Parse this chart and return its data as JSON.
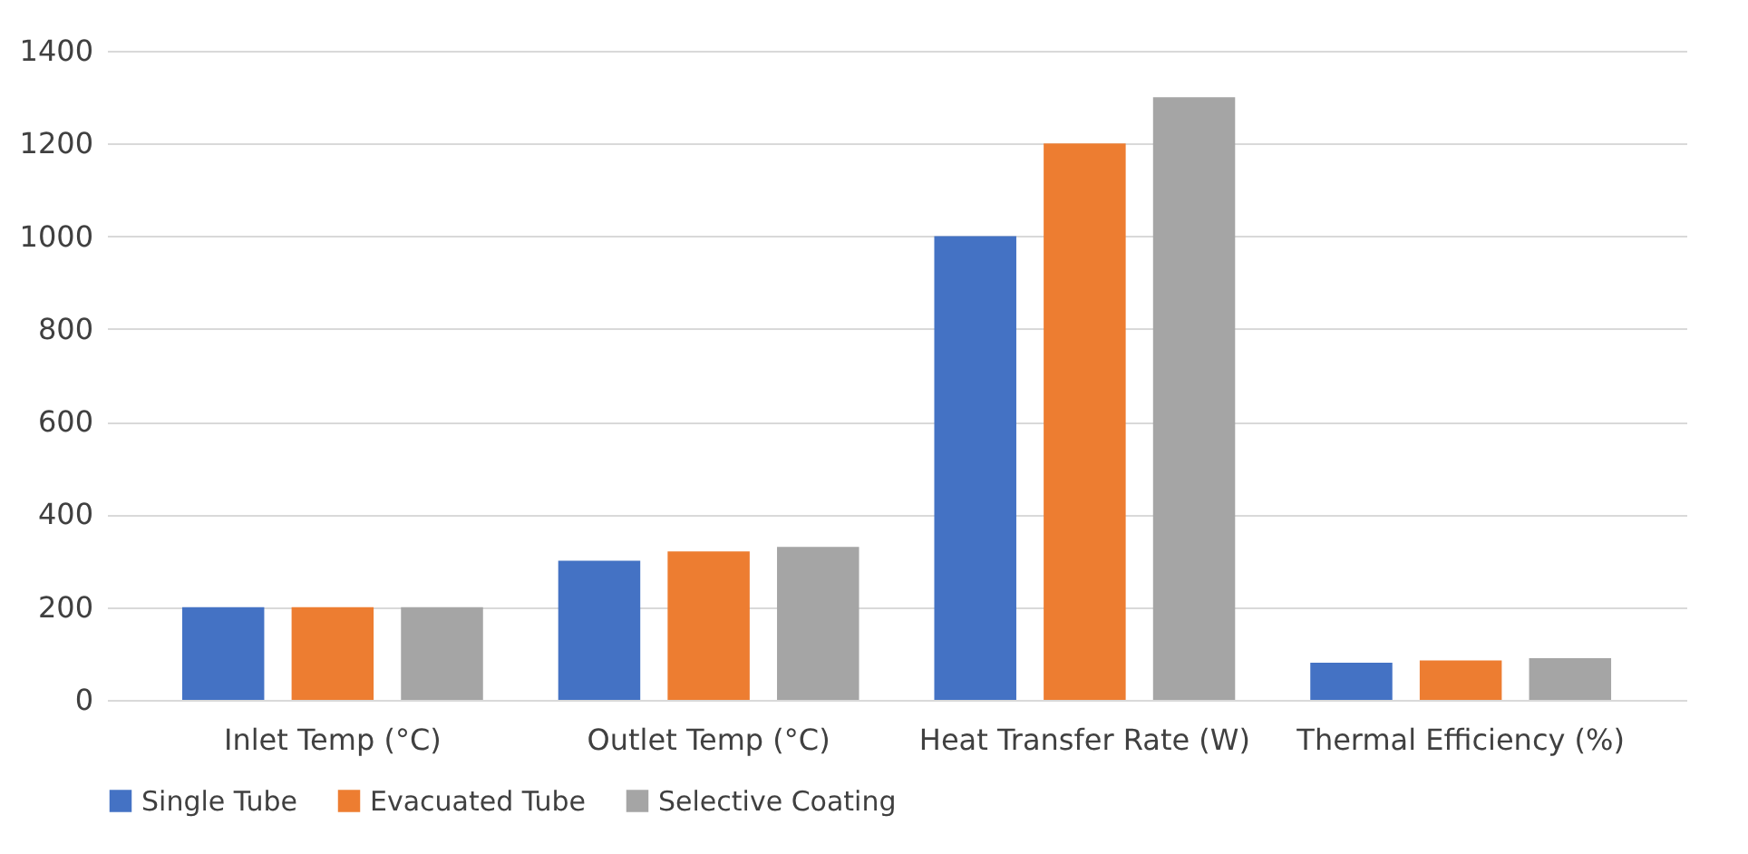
{
  "chart_data": {
    "type": "bar",
    "categories": [
      "Inlet Temp (°C)",
      "Outlet Temp (°C)",
      "Heat Transfer Rate (W)",
      "Thermal Efficiency (%)"
    ],
    "series": [
      {
        "name": "Single Tube",
        "color": "#4472c4",
        "values": [
          200,
          300,
          1000,
          80
        ]
      },
      {
        "name": "Evacuated Tube",
        "color": "#ed7d31",
        "values": [
          200,
          320,
          1200,
          85
        ]
      },
      {
        "name": "Selective Coating",
        "color": "#a5a5a5",
        "values": [
          200,
          330,
          1300,
          90
        ]
      }
    ],
    "ylim": [
      0,
      1400
    ],
    "yticks": [
      0,
      200,
      400,
      600,
      800,
      1000,
      1200,
      1400
    ],
    "grid": "y",
    "legend": "bottom"
  }
}
